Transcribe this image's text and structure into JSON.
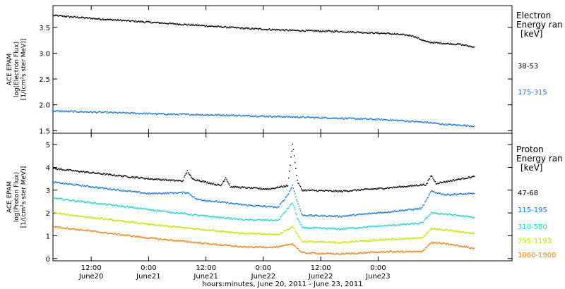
{
  "chart_data": [
    {
      "type": "scatter",
      "ylabel_lines": [
        "ACE EPAM",
        "log(Electron Flux)",
        "[1/(cm²s ster MeV)]"
      ],
      "ylim": [
        1.45,
        3.92
      ],
      "yticks": [
        "1.5",
        "2.0",
        "2.5",
        "3.0",
        "3.5"
      ],
      "ytick_values": [
        1.5,
        2.0,
        2.5,
        3.0,
        3.5
      ],
      "legend_title": [
        "Electron",
        "Energy ran"
      ],
      "legend_unit": "[keV]",
      "series": [
        {
          "name": "38-53",
          "color": "#000000",
          "points": [
            [
              0,
              3.73
            ],
            [
              10,
              3.66
            ],
            [
              20,
              3.6
            ],
            [
              30,
              3.54
            ],
            [
              40,
              3.48
            ],
            [
              50,
              3.44
            ],
            [
              60,
              3.42
            ],
            [
              70,
              3.38
            ],
            [
              75,
              3.34
            ],
            [
              78,
              3.22
            ],
            [
              80,
              3.2
            ],
            [
              85,
              3.17
            ],
            [
              88,
              3.12
            ]
          ]
        },
        {
          "name": "175-315",
          "color": "#1a78d6",
          "points": [
            [
              0,
              1.88
            ],
            [
              12,
              1.85
            ],
            [
              24,
              1.82
            ],
            [
              36,
              1.8
            ],
            [
              48,
              1.77
            ],
            [
              60,
              1.74
            ],
            [
              70,
              1.71
            ],
            [
              78,
              1.66
            ],
            [
              82,
              1.62
            ],
            [
              88,
              1.59
            ]
          ]
        }
      ]
    },
    {
      "type": "scatter",
      "ylabel_lines": [
        "ACE EPAM",
        "log(Proton Flux)",
        "[1/(cm²s ster MeV)]"
      ],
      "ylim": [
        -0.1,
        5.5
      ],
      "yticks": [
        "0",
        "1",
        "2",
        "3",
        "4",
        "5"
      ],
      "ytick_values": [
        0,
        1,
        2,
        3,
        4,
        5
      ],
      "legend_title": [
        "Proton",
        "Energy ran"
      ],
      "legend_unit": "[keV]",
      "series": [
        {
          "name": "47-68",
          "color": "#000000",
          "points": [
            [
              0,
              3.95
            ],
            [
              10,
              3.72
            ],
            [
              20,
              3.5
            ],
            [
              27,
              3.4
            ],
            [
              28,
              3.85
            ],
            [
              29,
              3.5
            ],
            [
              35,
              3.2
            ],
            [
              36,
              3.55
            ],
            [
              37,
              3.15
            ],
            [
              45,
              3.05
            ],
            [
              49,
              3.2
            ],
            [
              50,
              5.05
            ],
            [
              51,
              3.4
            ],
            [
              52,
              3.0
            ],
            [
              60,
              2.95
            ],
            [
              70,
              3.1
            ],
            [
              78,
              3.25
            ],
            [
              79,
              3.65
            ],
            [
              80,
              3.3
            ],
            [
              88,
              3.6
            ]
          ]
        },
        {
          "name": "115-195",
          "color": "#1a78d6",
          "points": [
            [
              0,
              3.35
            ],
            [
              10,
              3.1
            ],
            [
              20,
              2.85
            ],
            [
              28,
              2.9
            ],
            [
              30,
              2.6
            ],
            [
              40,
              2.35
            ],
            [
              47,
              2.25
            ],
            [
              49,
              2.8
            ],
            [
              50,
              3.2
            ],
            [
              51,
              2.5
            ],
            [
              52,
              1.9
            ],
            [
              60,
              1.85
            ],
            [
              70,
              2.05
            ],
            [
              77,
              2.2
            ],
            [
              79,
              2.95
            ],
            [
              82,
              2.8
            ],
            [
              88,
              2.85
            ]
          ]
        },
        {
          "name": "310-580",
          "color": "#20d0d0",
          "points": [
            [
              0,
              2.65
            ],
            [
              10,
              2.4
            ],
            [
              20,
              2.15
            ],
            [
              30,
              1.9
            ],
            [
              40,
              1.7
            ],
            [
              47,
              1.68
            ],
            [
              49,
              2.2
            ],
            [
              50,
              2.45
            ],
            [
              51,
              1.8
            ],
            [
              52,
              1.35
            ],
            [
              60,
              1.3
            ],
            [
              70,
              1.45
            ],
            [
              77,
              1.55
            ],
            [
              79,
              2.0
            ],
            [
              82,
              1.95
            ],
            [
              88,
              1.8
            ]
          ]
        },
        {
          "name": "795-1193",
          "color": "#c8e000",
          "points": [
            [
              0,
              2.0
            ],
            [
              10,
              1.75
            ],
            [
              20,
              1.5
            ],
            [
              30,
              1.3
            ],
            [
              40,
              1.1
            ],
            [
              47,
              1.05
            ],
            [
              50,
              1.4
            ],
            [
              52,
              0.75
            ],
            [
              60,
              0.7
            ],
            [
              70,
              0.85
            ],
            [
              77,
              0.9
            ],
            [
              79,
              1.3
            ],
            [
              82,
              1.25
            ],
            [
              88,
              1.1
            ]
          ]
        },
        {
          "name": "1060-1900",
          "color": "#f08010",
          "points": [
            [
              0,
              1.4
            ],
            [
              10,
              1.15
            ],
            [
              20,
              0.9
            ],
            [
              30,
              0.7
            ],
            [
              40,
              0.5
            ],
            [
              47,
              0.5
            ],
            [
              50,
              0.65
            ],
            [
              52,
              0.25
            ],
            [
              60,
              0.2
            ],
            [
              70,
              0.3
            ],
            [
              77,
              0.3
            ],
            [
              79,
              0.7
            ],
            [
              82,
              0.65
            ],
            [
              88,
              0.45
            ]
          ]
        }
      ]
    }
  ],
  "x_axis": {
    "xlim": [
      0,
      96
    ],
    "ticks": [
      {
        "hours": 8,
        "time": "12:00",
        "day": "June20"
      },
      {
        "hours": 20,
        "time": "0:00",
        "day": "June21"
      },
      {
        "hours": 32,
        "time": "12:00",
        "day": "June21"
      },
      {
        "hours": 44,
        "time": "0:00",
        "day": "June22"
      },
      {
        "hours": 56,
        "time": "12:00",
        "day": "June22"
      },
      {
        "hours": 68,
        "time": "0:00",
        "day": "June23"
      }
    ],
    "xlabel": "hours:minutes, June 20, 2011 - June 23, 2011"
  }
}
